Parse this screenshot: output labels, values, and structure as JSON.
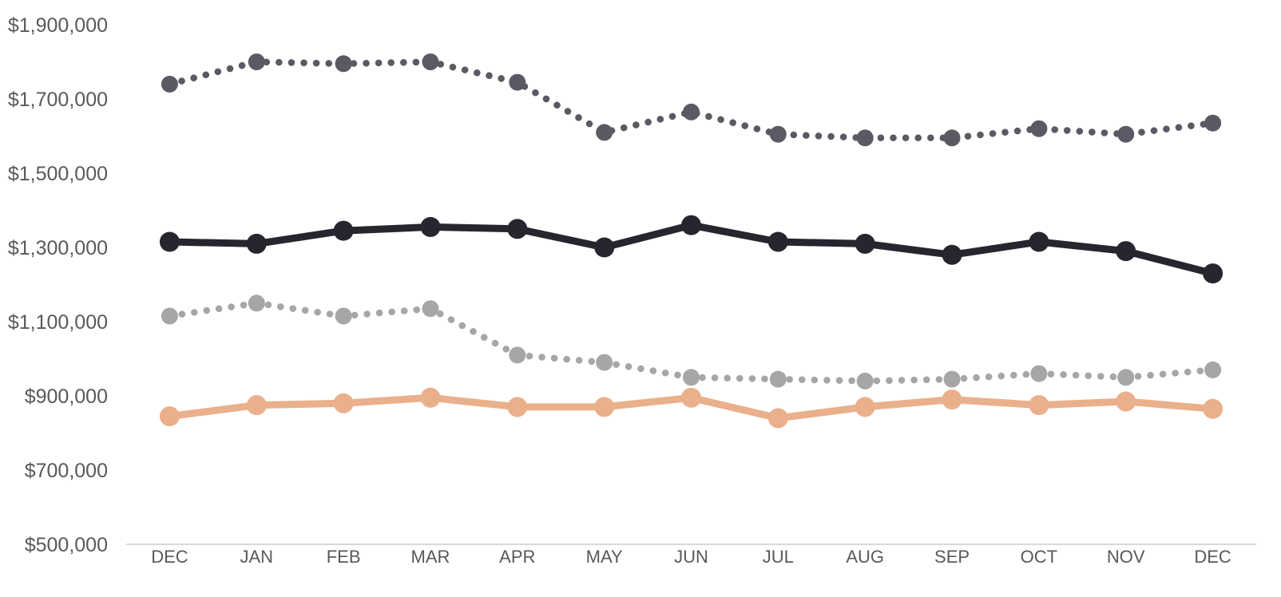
{
  "chart_data": {
    "type": "line",
    "title": "",
    "xlabel": "",
    "ylabel": "",
    "categories": [
      "DEC",
      "JAN",
      "FEB",
      "MAR",
      "APR",
      "MAY",
      "JUN",
      "JUL",
      "AUG",
      "SEP",
      "OCT",
      "NOV",
      "DEC"
    ],
    "series": [
      {
        "name": "dotted-dark",
        "style": "dotted",
        "color": "#5a5964",
        "values": [
          1740000,
          1800000,
          1795000,
          1800000,
          1745000,
          1610000,
          1665000,
          1605000,
          1595000,
          1595000,
          1620000,
          1605000,
          1635000
        ]
      },
      {
        "name": "solid-black",
        "style": "solid",
        "color": "#27252e",
        "values": [
          1315000,
          1310000,
          1345000,
          1355000,
          1350000,
          1300000,
          1360000,
          1315000,
          1310000,
          1280000,
          1315000,
          1290000,
          1230000
        ]
      },
      {
        "name": "dotted-gray",
        "style": "dotted",
        "color": "#a6a6a6",
        "values": [
          1115000,
          1150000,
          1115000,
          1135000,
          1010000,
          990000,
          950000,
          945000,
          940000,
          945000,
          960000,
          950000,
          970000
        ]
      },
      {
        "name": "solid-orange",
        "style": "solid",
        "color": "#eab08b",
        "values": [
          845000,
          875000,
          880000,
          895000,
          870000,
          870000,
          895000,
          840000,
          870000,
          890000,
          875000,
          885000,
          865000
        ]
      }
    ],
    "y_axis": {
      "min": 500000,
      "max": 1900000,
      "step": 200000,
      "tick_labels": [
        "$500,000",
        "$700,000",
        "$900,000",
        "$1,100,000",
        "$1,300,000",
        "$1,500,000",
        "$1,700,000",
        "$1,900,000"
      ]
    },
    "x_axis": {
      "tick_labels": [
        "DEC",
        "JAN",
        "FEB",
        "MAR",
        "APR",
        "MAY",
        "JUN",
        "JUL",
        "AUG",
        "SEP",
        "OCT",
        "NOV",
        "DEC"
      ]
    },
    "legend": "none",
    "grid": "off",
    "axis_line_color": "#d9d9d9",
    "tick_label_color": "#595959",
    "background_color": "#ffffff"
  }
}
